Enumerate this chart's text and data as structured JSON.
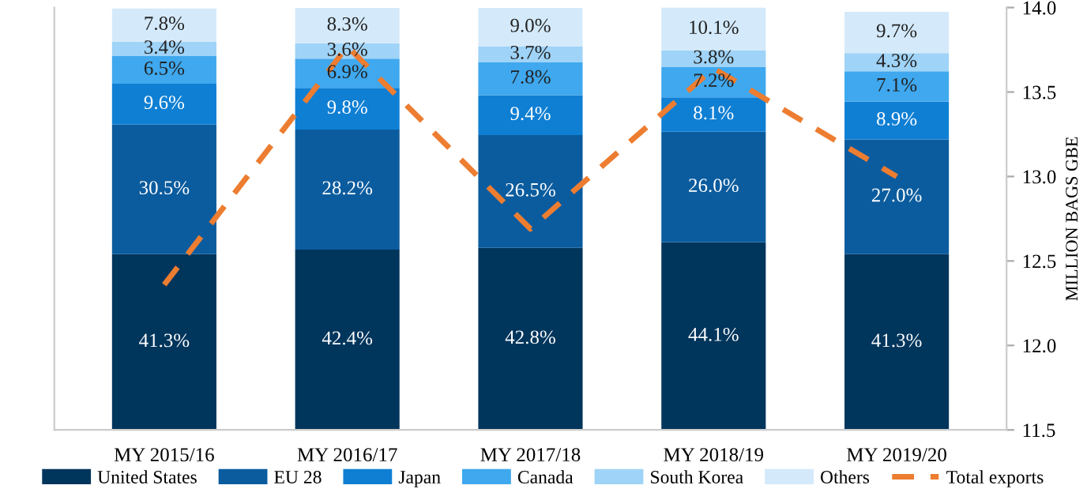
{
  "chart_data": {
    "type": "bar",
    "stacked": true,
    "y2label": "MILLION BAGS GBE",
    "categories": [
      "MY 2015/16",
      "MY 2016/17",
      "MY 2017/18",
      "MY 2018/19",
      "MY 2019/20"
    ],
    "series": [
      {
        "name": "United States",
        "color": "#00355c",
        "values": [
          41.3,
          42.4,
          42.8,
          44.1,
          41.3
        ],
        "value_labels": [
          "41.3%",
          "42.4%",
          "42.8%",
          "44.1%",
          "41.3%"
        ]
      },
      {
        "name": "EU 28",
        "color": "#0b5c9e",
        "values": [
          30.5,
          28.2,
          26.5,
          26.0,
          27.0
        ],
        "value_labels": [
          "30.5%",
          "28.2%",
          "26.5%",
          "26.0%",
          "27.0%"
        ]
      },
      {
        "name": "Japan",
        "color": "#0f7fd4",
        "values": [
          9.6,
          9.8,
          9.4,
          8.1,
          8.9
        ],
        "value_labels": [
          "9.6%",
          "9.8%",
          "9.4%",
          "8.1%",
          "8.9%"
        ]
      },
      {
        "name": "Canada",
        "color": "#3fa8ee",
        "values": [
          6.5,
          6.9,
          7.8,
          7.2,
          7.1
        ],
        "value_labels": [
          "6.5%",
          "6.9%",
          "7.8%",
          "7.2%",
          "7.1%"
        ]
      },
      {
        "name": "South Korea",
        "color": "#9fd3f7",
        "values": [
          3.4,
          3.6,
          3.7,
          3.8,
          4.3
        ],
        "value_labels": [
          "3.4%",
          "3.6%",
          "3.7%",
          "3.8%",
          "4.3%"
        ]
      },
      {
        "name": "Others",
        "color": "#d4eafb",
        "values": [
          7.8,
          8.3,
          9.0,
          10.1,
          9.7
        ],
        "value_labels": [
          "7.8%",
          "8.3%",
          "9.0%",
          "10.1%",
          "9.7%"
        ]
      },
      {
        "name": "Total exports",
        "type": "line",
        "axis": "y2",
        "color": "#ed7d31",
        "line_style": "dashed",
        "values": [
          12.36,
          13.77,
          12.69,
          13.64,
          13.0
        ]
      }
    ],
    "y2lim": [
      11.5,
      14.0
    ],
    "y2ticks": [
      11.5,
      {
        "value": 12,
        "label": "12.0"
      },
      12.5,
      {
        "value": 13,
        "label": "13.0"
      },
      13.5,
      {
        "value": 14,
        "label": "14.0"
      }
    ],
    "legend": "bottom",
    "grid": false
  }
}
